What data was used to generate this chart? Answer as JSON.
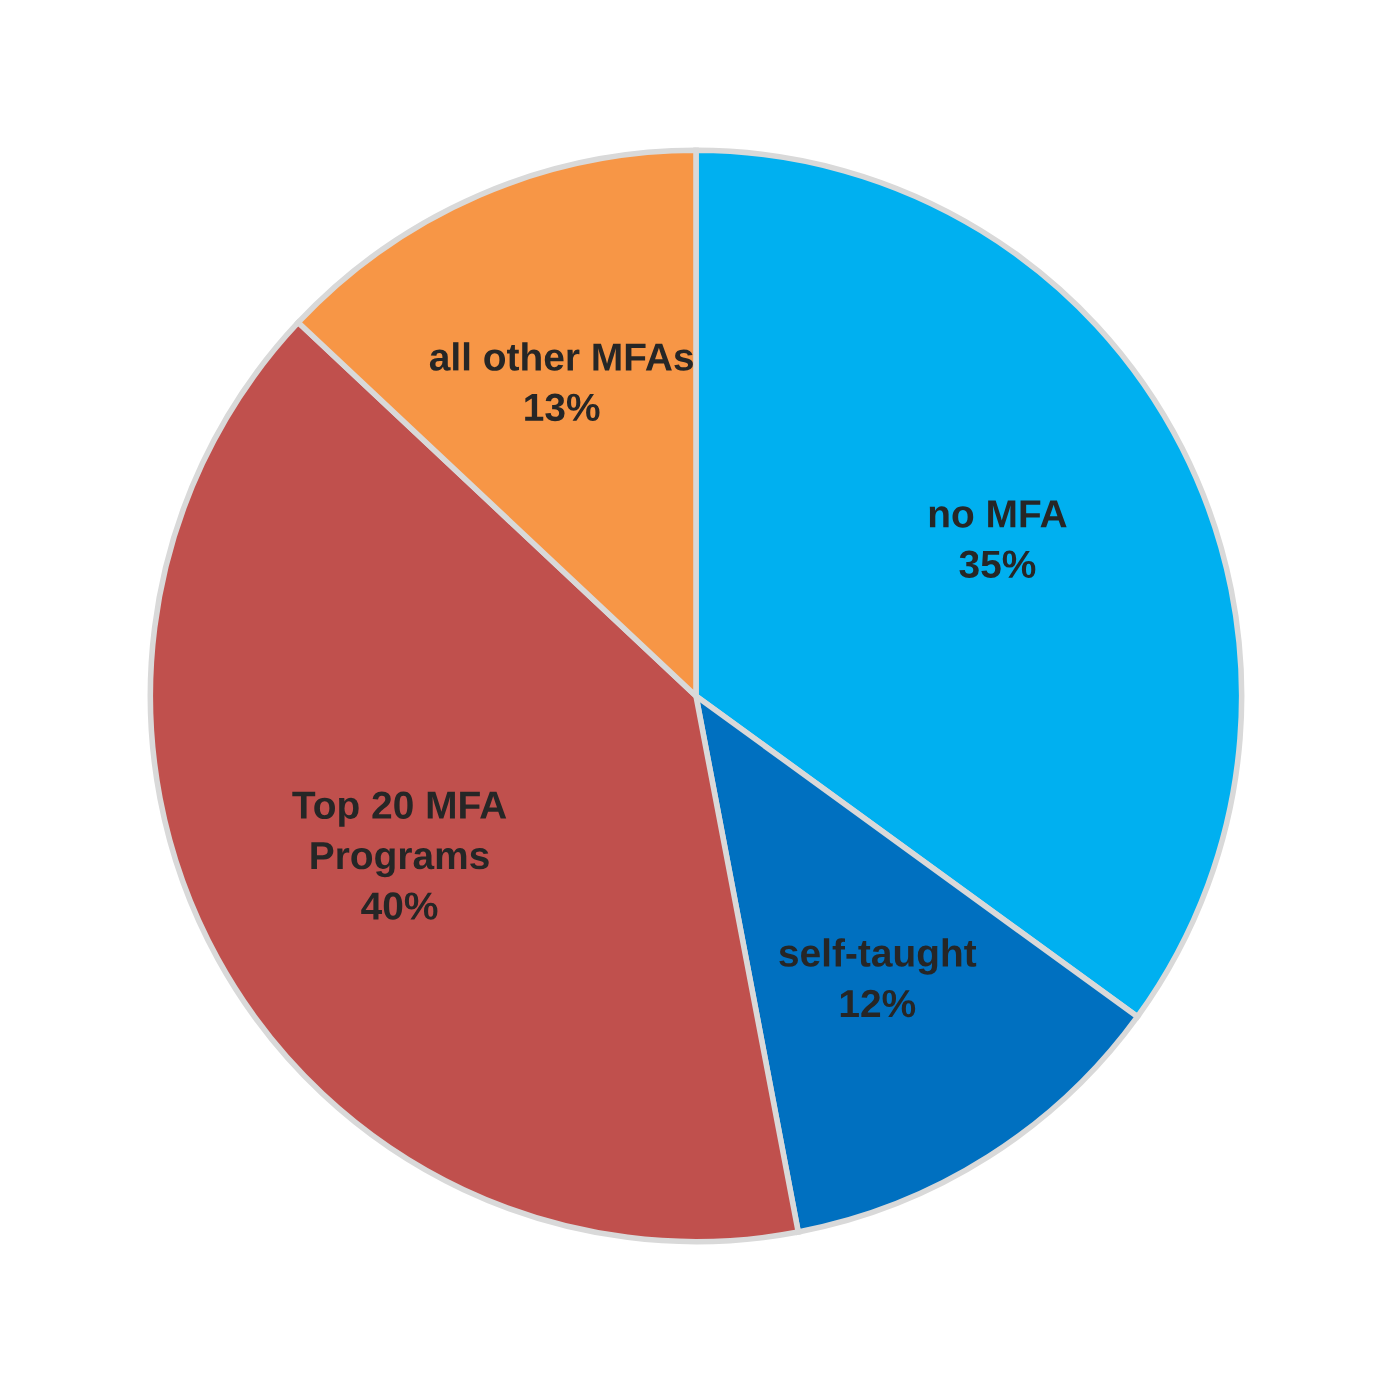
{
  "chart_data": {
    "type": "pie",
    "categories": [
      "no MFA",
      "self-taught",
      "Top 20 MFA\nPrograms",
      "all other MFAs"
    ],
    "values": [
      35,
      12,
      40,
      13
    ],
    "value_labels": [
      "35%",
      "12%",
      "40%",
      "13%"
    ],
    "colors": [
      "#00b0f0",
      "#0070c0",
      "#c0504d",
      "#f79646"
    ]
  }
}
